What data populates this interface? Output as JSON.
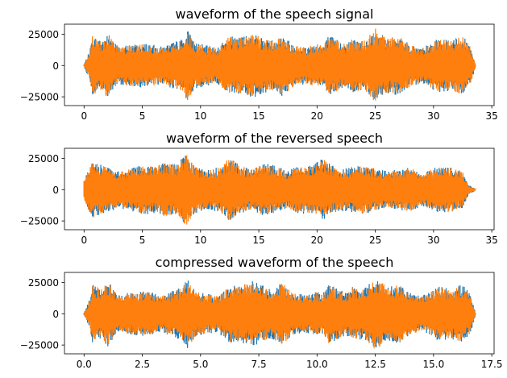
{
  "chart_data": [
    {
      "type": "line",
      "title": "waveform of the speech signal",
      "xlabel": "",
      "ylabel": "",
      "xlim": [
        -1.68,
        35.2
      ],
      "ylim": [
        -32000,
        33000
      ],
      "xticks": [
        0,
        5,
        10,
        15,
        20,
        25,
        30,
        35
      ],
      "yticks": [
        -25000,
        0,
        25000
      ],
      "ytick_labels": [
        "−25000",
        "0",
        "25000"
      ],
      "duration": 33.6,
      "series": [
        {
          "color": "#1f77b4",
          "peak_envelope": [
            [
              0.0,
              1000
            ],
            [
              0.5,
              12000
            ],
            [
              0.7,
              24000
            ],
            [
              1.5,
              20000
            ],
            [
              2.0,
              26500
            ],
            [
              3.0,
              15000
            ],
            [
              4.0,
              17000
            ],
            [
              5.5,
              18000
            ],
            [
              6.5,
              15000
            ],
            [
              7.5,
              18000
            ],
            [
              8.5,
              22000
            ],
            [
              8.9,
              28500
            ],
            [
              9.5,
              19000
            ],
            [
              10.5,
              16000
            ],
            [
              11.5,
              15000
            ],
            [
              12.5,
              24000
            ],
            [
              13.0,
              22000
            ],
            [
              14.5,
              26000
            ],
            [
              16.0,
              20000
            ],
            [
              17.0,
              25000
            ],
            [
              18.0,
              17000
            ],
            [
              19.0,
              15000
            ],
            [
              20.0,
              18000
            ],
            [
              20.5,
              16000
            ],
            [
              21.0,
              24500
            ],
            [
              22.5,
              17000
            ],
            [
              23.0,
              22000
            ],
            [
              24.0,
              20000
            ],
            [
              25.0,
              28000
            ],
            [
              26.0,
              22000
            ],
            [
              27.0,
              24000
            ],
            [
              28.0,
              17000
            ],
            [
              29.0,
              14000
            ],
            [
              30.5,
              22000
            ],
            [
              31.5,
              20000
            ],
            [
              32.5,
              24000
            ],
            [
              33.2,
              15000
            ],
            [
              33.6,
              800
            ]
          ]
        },
        {
          "color": "#ff7f0e",
          "peak_envelope": [
            [
              0.0,
              900
            ],
            [
              0.5,
              11500
            ],
            [
              0.7,
              23500
            ],
            [
              1.5,
              19500
            ],
            [
              2.0,
              26000
            ],
            [
              3.0,
              14500
            ],
            [
              4.0,
              16500
            ],
            [
              5.5,
              17500
            ],
            [
              6.5,
              14500
            ],
            [
              7.5,
              17500
            ],
            [
              8.5,
              21500
            ],
            [
              8.9,
              28000
            ],
            [
              9.5,
              18500
            ],
            [
              10.5,
              15500
            ],
            [
              11.5,
              14500
            ],
            [
              12.5,
              23500
            ],
            [
              13.0,
              21500
            ],
            [
              14.5,
              25500
            ],
            [
              16.0,
              19500
            ],
            [
              17.0,
              24500
            ],
            [
              18.0,
              16500
            ],
            [
              19.0,
              14500
            ],
            [
              20.0,
              17500
            ],
            [
              20.5,
              15500
            ],
            [
              21.0,
              24000
            ],
            [
              22.5,
              16500
            ],
            [
              23.0,
              21500
            ],
            [
              24.0,
              19500
            ],
            [
              25.0,
              30000
            ],
            [
              26.0,
              21500
            ],
            [
              27.0,
              23500
            ],
            [
              28.0,
              16500
            ],
            [
              29.0,
              13500
            ],
            [
              30.5,
              21500
            ],
            [
              31.5,
              19500
            ],
            [
              32.5,
              23500
            ],
            [
              33.2,
              14500
            ],
            [
              33.6,
              700
            ]
          ]
        }
      ]
    },
    {
      "type": "line",
      "title": "waveform of the reversed speech",
      "xlabel": "",
      "ylabel": "",
      "xlim": [
        -1.68,
        35.2
      ],
      "ylim": [
        -32000,
        33000
      ],
      "xticks": [
        0,
        5,
        10,
        15,
        20,
        25,
        30,
        35
      ],
      "yticks": [
        -25000,
        0,
        25000
      ],
      "ytick_labels": [
        "−25000",
        "0",
        "25000"
      ],
      "duration": 33.6,
      "series": [
        {
          "color": "#1f77b4",
          "peak_envelope": [
            [
              0.0,
              9000
            ],
            [
              0.3,
              15000
            ],
            [
              0.7,
              22000
            ],
            [
              1.5,
              20000
            ],
            [
              2.0,
              18000
            ],
            [
              3.0,
              15000
            ],
            [
              4.0,
              17000
            ],
            [
              5.0,
              20000
            ],
            [
              6.0,
              19000
            ],
            [
              7.0,
              22000
            ],
            [
              8.0,
              20000
            ],
            [
              8.7,
              29000
            ],
            [
              9.5,
              19000
            ],
            [
              10.5,
              16000
            ],
            [
              11.5,
              18000
            ],
            [
              12.5,
              26000
            ],
            [
              13.5,
              19000
            ],
            [
              14.5,
              17000
            ],
            [
              15.5,
              21000
            ],
            [
              16.5,
              19000
            ],
            [
              17.5,
              15000
            ],
            [
              18.5,
              20000
            ],
            [
              19.5,
              19000
            ],
            [
              20.5,
              25000
            ],
            [
              21.5,
              18000
            ],
            [
              22.5,
              17000
            ],
            [
              23.5,
              19000
            ],
            [
              24.3,
              20000
            ],
            [
              25.0,
              17000
            ],
            [
              26.0,
              15000
            ],
            [
              27.0,
              16000
            ],
            [
              28.0,
              18000
            ],
            [
              29.0,
              13000
            ],
            [
              30.5,
              19000
            ],
            [
              31.5,
              18000
            ],
            [
              32.5,
              15000
            ],
            [
              33.0,
              4000
            ],
            [
              33.6,
              500
            ]
          ]
        },
        {
          "color": "#ff7f0e",
          "peak_envelope": [
            [
              0.0,
              8500
            ],
            [
              0.3,
              14500
            ],
            [
              0.7,
              24000
            ],
            [
              1.5,
              19500
            ],
            [
              2.0,
              17500
            ],
            [
              3.0,
              14500
            ],
            [
              4.0,
              16500
            ],
            [
              5.0,
              19500
            ],
            [
              6.0,
              18500
            ],
            [
              7.0,
              21500
            ],
            [
              8.0,
              19500
            ],
            [
              8.7,
              30000
            ],
            [
              9.5,
              18500
            ],
            [
              10.5,
              15500
            ],
            [
              11.5,
              17500
            ],
            [
              12.5,
              25500
            ],
            [
              13.5,
              18500
            ],
            [
              14.5,
              16500
            ],
            [
              15.5,
              20500
            ],
            [
              16.5,
              18500
            ],
            [
              17.5,
              14500
            ],
            [
              18.5,
              19500
            ],
            [
              19.5,
              18500
            ],
            [
              20.5,
              24500
            ],
            [
              21.5,
              17500
            ],
            [
              22.5,
              16500
            ],
            [
              23.5,
              18500
            ],
            [
              24.3,
              20000
            ],
            [
              25.0,
              16500
            ],
            [
              26.0,
              14500
            ],
            [
              27.0,
              15500
            ],
            [
              28.0,
              17500
            ],
            [
              29.0,
              12500
            ],
            [
              30.5,
              18500
            ],
            [
              31.5,
              17500
            ],
            [
              32.5,
              14500
            ],
            [
              33.0,
              3500
            ],
            [
              33.6,
              400
            ]
          ]
        }
      ]
    },
    {
      "type": "line",
      "title": "compressed waveform of the speech",
      "xlabel": "",
      "ylabel": "",
      "xlim": [
        -0.84,
        17.6
      ],
      "ylim": [
        -32000,
        33000
      ],
      "xticks": [
        0.0,
        2.5,
        5.0,
        7.5,
        10.0,
        12.5,
        15.0,
        17.5
      ],
      "xtick_labels": [
        "0.0",
        "2.5",
        "5.0",
        "7.5",
        "10.0",
        "12.5",
        "15.0",
        "17.5"
      ],
      "yticks": [
        -25000,
        0,
        25000
      ],
      "ytick_labels": [
        "−25000",
        "0",
        "25000"
      ],
      "duration": 16.8,
      "series": [
        {
          "color": "#1f77b4",
          "peak_envelope": [
            [
              0.0,
              1000
            ],
            [
              0.25,
              12000
            ],
            [
              0.35,
              24000
            ],
            [
              0.75,
              20000
            ],
            [
              1.0,
              26500
            ],
            [
              1.5,
              15000
            ],
            [
              2.0,
              17000
            ],
            [
              2.75,
              18000
            ],
            [
              3.25,
              15000
            ],
            [
              3.75,
              18000
            ],
            [
              4.25,
              22000
            ],
            [
              4.45,
              28500
            ],
            [
              4.75,
              19000
            ],
            [
              5.25,
              16000
            ],
            [
              5.75,
              15000
            ],
            [
              6.25,
              24000
            ],
            [
              6.5,
              22000
            ],
            [
              7.25,
              26000
            ],
            [
              8.0,
              20000
            ],
            [
              8.5,
              25000
            ],
            [
              9.0,
              17000
            ],
            [
              9.5,
              15000
            ],
            [
              10.0,
              18000
            ],
            [
              10.25,
              16000
            ],
            [
              10.5,
              24500
            ],
            [
              11.25,
              17000
            ],
            [
              11.5,
              22000
            ],
            [
              12.0,
              20000
            ],
            [
              12.5,
              28000
            ],
            [
              13.0,
              22000
            ],
            [
              13.5,
              24000
            ],
            [
              14.0,
              17000
            ],
            [
              14.5,
              14000
            ],
            [
              15.25,
              22000
            ],
            [
              15.75,
              20000
            ],
            [
              16.25,
              24000
            ],
            [
              16.6,
              15000
            ],
            [
              16.8,
              800
            ]
          ]
        },
        {
          "color": "#ff7f0e",
          "peak_envelope": [
            [
              0.0,
              900
            ],
            [
              0.25,
              11500
            ],
            [
              0.35,
              23500
            ],
            [
              0.75,
              19500
            ],
            [
              1.0,
              26000
            ],
            [
              1.5,
              14500
            ],
            [
              2.0,
              16500
            ],
            [
              2.75,
              17500
            ],
            [
              3.25,
              14500
            ],
            [
              3.75,
              17500
            ],
            [
              4.25,
              21500
            ],
            [
              4.45,
              28000
            ],
            [
              4.75,
              18500
            ],
            [
              5.25,
              15500
            ],
            [
              5.75,
              14500
            ],
            [
              6.25,
              23500
            ],
            [
              6.5,
              21500
            ],
            [
              7.25,
              25500
            ],
            [
              8.0,
              19500
            ],
            [
              8.5,
              24500
            ],
            [
              9.0,
              16500
            ],
            [
              9.5,
              14500
            ],
            [
              10.0,
              17500
            ],
            [
              10.25,
              15500
            ],
            [
              10.5,
              24000
            ],
            [
              11.25,
              16500
            ],
            [
              11.5,
              21500
            ],
            [
              12.0,
              19500
            ],
            [
              12.5,
              30000
            ],
            [
              13.0,
              21500
            ],
            [
              13.5,
              23500
            ],
            [
              14.0,
              16500
            ],
            [
              14.5,
              13500
            ],
            [
              15.25,
              21500
            ],
            [
              15.75,
              19500
            ],
            [
              16.25,
              23500
            ],
            [
              16.6,
              14500
            ],
            [
              16.8,
              700
            ]
          ]
        }
      ]
    }
  ]
}
